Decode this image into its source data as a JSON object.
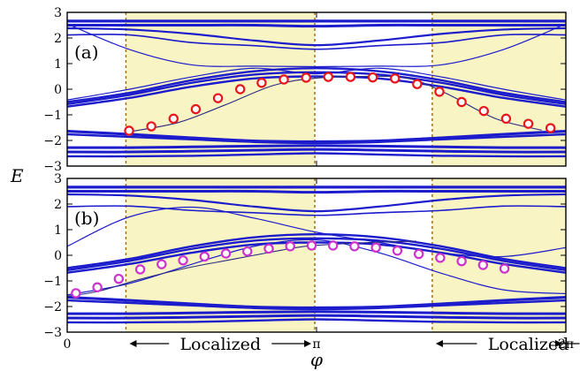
{
  "chart_data": {
    "type": "line",
    "ylabel": "E",
    "xlabel": "φ",
    "xlim": [
      0,
      6.2832
    ],
    "ylim": [
      -3,
      3
    ],
    "x_ticks": [
      {
        "value": 0,
        "label": "0"
      },
      {
        "value": 3.1416,
        "label": "π"
      },
      {
        "value": 6.2832,
        "label": "2π"
      }
    ],
    "y_ticks": [
      {
        "value": 3,
        "label": "3"
      },
      {
        "value": 2,
        "label": "2"
      },
      {
        "value": 1,
        "label": "1"
      },
      {
        "value": 0,
        "label": "0"
      },
      {
        "value": -1,
        "label": "−1"
      },
      {
        "value": -2,
        "label": "−2"
      },
      {
        "value": -3,
        "label": "−3"
      }
    ],
    "localized_regions": [
      [
        0.74,
        3.12
      ],
      [
        4.6,
        7.02
      ]
    ],
    "region_labels": [
      {
        "text": "Localized",
        "x_center": 1.93
      },
      {
        "text": "Localized",
        "x_center": 5.81
      }
    ],
    "colors": {
      "bands": "#1c1ccc",
      "region_fill": "#f9f4c4",
      "region_border": "#a0660a",
      "marker_a": "#e8151a",
      "marker_b": "#cc33cc"
    },
    "panels": [
      {
        "label": "(a)",
        "bands": [
          {
            "y": [
              2.66,
              2.66,
              2.66,
              2.66,
              2.66,
              2.66,
              2.66,
              2.66,
              2.66
            ],
            "width": 3.2
          },
          {
            "y": [
              2.5,
              2.5,
              2.5,
              2.5,
              2.46,
              2.5,
              2.5,
              2.5,
              2.5
            ],
            "width": 3.0
          },
          {
            "y": [
              2.38,
              2.33,
              2.16,
              1.9,
              1.72,
              1.9,
              2.16,
              2.33,
              2.38
            ],
            "width": 2.2
          },
          {
            "y": [
              2.12,
              2.12,
              1.82,
              1.7,
              1.56,
              1.7,
              1.82,
              2.12,
              2.12
            ],
            "width": 1.6
          },
          {
            "y": [
              2.55,
              1.55,
              0.95,
              0.9,
              0.88,
              0.9,
              0.95,
              1.55,
              2.55
            ],
            "width": 1.2
          },
          {
            "y": [
              -0.5,
              -0.14,
              0.35,
              0.7,
              0.82,
              0.7,
              0.35,
              -0.14,
              -0.5
            ],
            "width": 2.4
          },
          {
            "y": [
              -0.58,
              -0.22,
              0.25,
              0.57,
              0.66,
              0.57,
              0.25,
              -0.22,
              -0.58
            ],
            "width": 2.4
          },
          {
            "y": [
              -0.68,
              -0.34,
              0.1,
              0.42,
              0.5,
              0.42,
              0.1,
              -0.34,
              -0.68
            ],
            "width": 2.4
          },
          {
            "y": [
              -0.42,
              0.0,
              0.48,
              0.82,
              0.6,
              0.82,
              0.48,
              0.0,
              -0.42
            ],
            "width": 1.2
          },
          {
            "y": [
              -1.64,
              -1.76,
              -1.9,
              -2.02,
              -2.05,
              -2.02,
              -1.9,
              -1.76,
              -1.64
            ],
            "width": 3.2
          },
          {
            "y": [
              -1.76,
              -1.86,
              -1.96,
              -2.06,
              -2.1,
              -2.06,
              -1.96,
              -1.86,
              -1.76
            ],
            "width": 2.4
          },
          {
            "y": [
              -2.28,
              -2.28,
              -2.25,
              -2.22,
              -2.2,
              -2.22,
              -2.25,
              -2.28,
              -2.28
            ],
            "width": 3.0
          },
          {
            "y": [
              -2.45,
              -2.45,
              -2.42,
              -2.38,
              -2.35,
              -2.38,
              -2.42,
              -2.45,
              -2.45
            ],
            "width": 3.0
          },
          {
            "y": [
              -2.62,
              -2.62,
              -2.6,
              -2.55,
              -2.5,
              -2.55,
              -2.6,
              -2.62,
              -2.62
            ],
            "width": 2.4
          }
        ],
        "state_curve": {
          "x": [
            0.8,
            1.4,
            2.0,
            2.6,
            3.1,
            3.7,
            4.3,
            4.8,
            5.4,
            5.98
          ],
          "y": [
            -1.65,
            -1.3,
            -0.6,
            0.15,
            0.42,
            0.5,
            0.42,
            -0.2,
            -1.15,
            -1.6
          ]
        },
        "markers": {
          "x": [
            0.78,
            1.06,
            1.34,
            1.62,
            1.9,
            2.18,
            2.45,
            2.73,
            3.01,
            3.29,
            3.57,
            3.85,
            4.13,
            4.41,
            4.69,
            4.97,
            5.25,
            5.53,
            5.81,
            6.09,
            6.37
          ],
          "y": [
            -1.62,
            -1.45,
            -1.15,
            -0.78,
            -0.35,
            0.0,
            0.25,
            0.38,
            0.45,
            0.48,
            0.48,
            0.46,
            0.42,
            0.2,
            -0.1,
            -0.5,
            -0.85,
            -1.15,
            -1.35,
            -1.52,
            -1.55
          ]
        }
      },
      {
        "label": "(b)",
        "bands": [
          {
            "y": [
              2.66,
              2.66,
              2.66,
              2.66,
              2.66,
              2.66,
              2.66,
              2.66,
              2.66
            ],
            "width": 3.2
          },
          {
            "y": [
              2.5,
              2.5,
              2.5,
              2.5,
              2.46,
              2.5,
              2.5,
              2.5,
              2.5
            ],
            "width": 3.0
          },
          {
            "y": [
              2.38,
              2.33,
              2.16,
              1.9,
              1.72,
              1.9,
              2.16,
              2.33,
              2.38
            ],
            "width": 2.2
          },
          {
            "y": [
              1.9,
              1.92,
              1.75,
              1.66,
              1.56,
              1.66,
              1.75,
              1.92,
              1.9
            ],
            "width": 1.6
          },
          {
            "y": [
              0.35,
              1.5,
              1.88,
              1.45,
              0.9,
              0.5,
              0.1,
              -0.05,
              0.3
            ],
            "width": 1.2
          },
          {
            "y": [
              -0.5,
              -0.14,
              0.35,
              0.7,
              0.82,
              0.7,
              0.35,
              -0.14,
              -0.5
            ],
            "width": 2.4
          },
          {
            "y": [
              -0.58,
              -0.22,
              0.25,
              0.57,
              0.66,
              0.57,
              0.25,
              -0.22,
              -0.58
            ],
            "width": 2.4
          },
          {
            "y": [
              -0.68,
              -0.34,
              0.1,
              0.42,
              0.5,
              0.42,
              0.1,
              -0.34,
              -0.68
            ],
            "width": 2.4
          },
          {
            "y": [
              -1.55,
              -1.1,
              -0.35,
              0.35,
              0.6,
              0.1,
              -0.7,
              -1.35,
              -1.5
            ],
            "width": 1.2
          },
          {
            "y": [
              -1.64,
              -1.76,
              -1.9,
              -2.02,
              -2.05,
              -2.02,
              -1.9,
              -1.76,
              -1.64
            ],
            "width": 3.2
          },
          {
            "y": [
              -1.76,
              -1.86,
              -1.96,
              -2.06,
              -2.1,
              -2.06,
              -1.96,
              -1.86,
              -1.76
            ],
            "width": 2.4
          },
          {
            "y": [
              -2.28,
              -2.28,
              -2.25,
              -2.22,
              -2.2,
              -2.22,
              -2.25,
              -2.28,
              -2.28
            ],
            "width": 3.0
          },
          {
            "y": [
              -2.45,
              -2.45,
              -2.42,
              -2.38,
              -2.35,
              -2.38,
              -2.42,
              -2.45,
              -2.45
            ],
            "width": 3.0
          },
          {
            "y": [
              -2.62,
              -2.62,
              -2.6,
              -2.55,
              -2.5,
              -2.55,
              -2.6,
              -2.62,
              -2.62
            ],
            "width": 2.4
          }
        ],
        "state_curve": {
          "x": [
            0.0,
            0.4,
            0.9,
            1.5,
            2.1,
            2.7,
            3.0,
            3.3,
            3.8,
            4.4
          ],
          "y": [
            -1.6,
            -1.4,
            -0.95,
            -0.5,
            -0.15,
            0.2,
            0.35,
            0.42,
            0.5,
            0.55
          ]
        },
        "markers": {
          "x": [
            0.11,
            0.38,
            0.65,
            0.92,
            1.19,
            1.46,
            1.73,
            2.0,
            2.27,
            2.54,
            2.81,
            3.08,
            3.35,
            3.62,
            3.89,
            4.16,
            4.43,
            4.7,
            4.97,
            5.24,
            5.51
          ],
          "y": [
            -1.48,
            -1.25,
            -0.92,
            -0.55,
            -0.35,
            -0.2,
            -0.05,
            0.07,
            0.15,
            0.26,
            0.35,
            0.38,
            0.38,
            0.35,
            0.3,
            0.18,
            0.05,
            -0.1,
            -0.23,
            -0.38,
            -0.52
          ]
        }
      }
    ]
  }
}
